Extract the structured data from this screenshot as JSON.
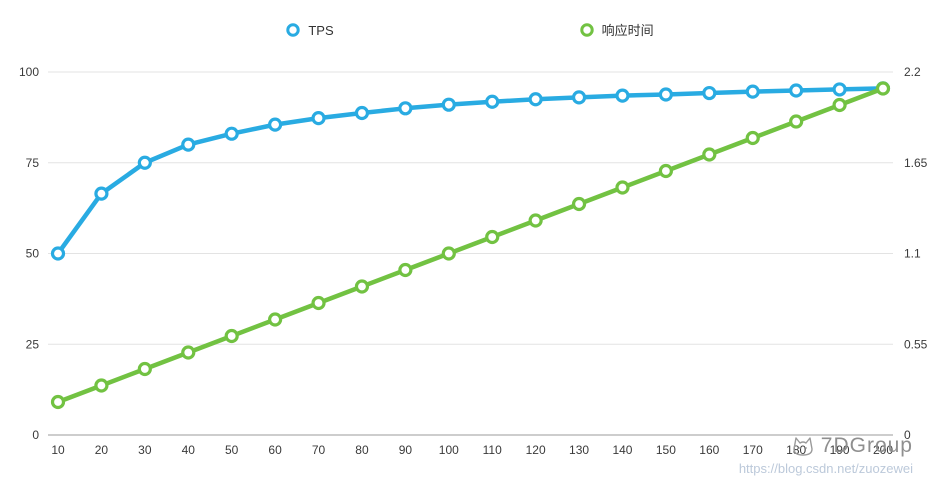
{
  "legend": [
    {
      "label": "TPS",
      "color": "#29abe2"
    },
    {
      "label": "响应时间",
      "color": "#72c242"
    }
  ],
  "watermark": {
    "brand": "7DGroup",
    "url": "https://blog.csdn.net/zuozewei"
  },
  "chart_data": {
    "type": "line",
    "x": [
      10,
      20,
      30,
      40,
      50,
      60,
      70,
      80,
      90,
      100,
      110,
      120,
      130,
      140,
      150,
      160,
      170,
      180,
      190,
      200
    ],
    "series": [
      {
        "name": "TPS",
        "axis": "left",
        "color": "#29abe2",
        "values": [
          50,
          66.5,
          75,
          80,
          83,
          85.5,
          87.3,
          88.7,
          90,
          91,
          91.8,
          92.5,
          93,
          93.5,
          93.8,
          94.2,
          94.6,
          94.9,
          95.2,
          95.5
        ]
      },
      {
        "name": "响应时间",
        "axis": "right",
        "color": "#72c242",
        "values": [
          0.2,
          0.3,
          0.4,
          0.5,
          0.6,
          0.7,
          0.8,
          0.9,
          1.0,
          1.1,
          1.2,
          1.3,
          1.4,
          1.5,
          1.6,
          1.7,
          1.8,
          1.9,
          2.0,
          2.1
        ]
      }
    ],
    "left_axis": {
      "ticks": [
        0,
        25,
        50,
        75,
        100
      ],
      "range": [
        0,
        100
      ]
    },
    "right_axis": {
      "ticks": [
        0,
        0.55,
        1.1,
        1.65,
        2.2
      ],
      "range": [
        0,
        2.2
      ]
    },
    "grid": true,
    "legend_position": "top",
    "title": "",
    "xlabel": "",
    "ylabel_left": "",
    "ylabel_right": ""
  }
}
